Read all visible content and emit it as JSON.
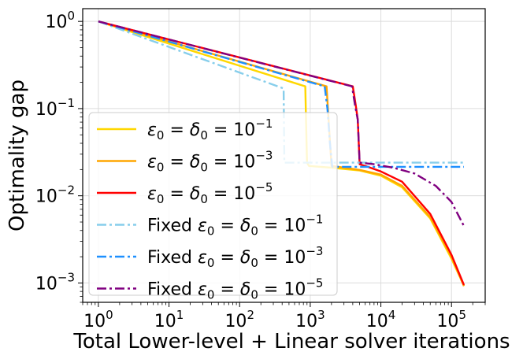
{
  "chart_data": {
    "type": "line",
    "xlabel": "Total Lower-level + Linear solver iterations",
    "ylabel": "Optimality gap",
    "xscale": "log",
    "yscale": "log",
    "xlim": [
      0.6,
      300000
    ],
    "ylim": [
      0.0006,
      1.4
    ],
    "grid": true,
    "legend_position": "lower-left",
    "x_ticks": [
      {
        "value": 1,
        "base": "10",
        "exp": "0"
      },
      {
        "value": 10,
        "base": "10",
        "exp": "1"
      },
      {
        "value": 100,
        "base": "10",
        "exp": "2"
      },
      {
        "value": 1000,
        "base": "10",
        "exp": "3"
      },
      {
        "value": 10000,
        "base": "10",
        "exp": "4"
      },
      {
        "value": 100000,
        "base": "10",
        "exp": "5"
      }
    ],
    "y_ticks": [
      {
        "value": 0.001,
        "base": "10",
        "exp": "−3"
      },
      {
        "value": 0.01,
        "base": "10",
        "exp": "−2"
      },
      {
        "value": 0.1,
        "base": "10",
        "exp": "−1"
      },
      {
        "value": 1,
        "base": "10",
        "exp": "0"
      }
    ],
    "series": [
      {
        "name_prefix": "",
        "exp": "−1",
        "color": "#FFD700",
        "dash": "solid",
        "points": [
          [
            1,
            1
          ],
          [
            850,
            0.18
          ],
          [
            870,
            0.075
          ],
          [
            900,
            0.024
          ],
          [
            960,
            0.022
          ],
          [
            2000,
            0.021
          ],
          [
            5000,
            0.0195
          ],
          [
            10000,
            0.017
          ],
          [
            20000,
            0.0125
          ],
          [
            50000,
            0.0055
          ],
          [
            100000,
            0.0019
          ],
          [
            150000,
            0.00093
          ]
        ]
      },
      {
        "name_prefix": "",
        "exp": "−3",
        "color": "#FFA500",
        "dash": "solid",
        "points": [
          [
            1,
            1
          ],
          [
            1700,
            0.18
          ],
          [
            1850,
            0.06
          ],
          [
            2000,
            0.022
          ],
          [
            3000,
            0.021
          ],
          [
            5000,
            0.0198
          ],
          [
            10000,
            0.0175
          ],
          [
            20000,
            0.013
          ],
          [
            50000,
            0.0057
          ],
          [
            100000,
            0.002
          ],
          [
            150000,
            0.00092
          ]
        ]
      },
      {
        "name_prefix": "",
        "exp": "−5",
        "color": "#FF0000",
        "dash": "solid",
        "points": [
          [
            1,
            1
          ],
          [
            4000,
            0.18
          ],
          [
            4400,
            0.11
          ],
          [
            4700,
            0.075
          ],
          [
            5000,
            0.023
          ],
          [
            6000,
            0.022
          ],
          [
            10000,
            0.019
          ],
          [
            20000,
            0.0145
          ],
          [
            50000,
            0.0062
          ],
          [
            100000,
            0.0021
          ],
          [
            150000,
            0.00095
          ]
        ]
      },
      {
        "name_prefix": "Fixed ",
        "exp": "−1",
        "color": "#87CEEB",
        "dash": "dashdot",
        "points": [
          [
            1,
            1
          ],
          [
            420,
            0.17
          ],
          [
            430,
            0.024
          ],
          [
            150000,
            0.024
          ]
        ]
      },
      {
        "name_prefix": "Fixed ",
        "exp": "−3",
        "color": "#1E90FF",
        "dash": "dashdot",
        "points": [
          [
            1,
            1
          ],
          [
            1600,
            0.18
          ],
          [
            1750,
            0.1
          ],
          [
            1900,
            0.04
          ],
          [
            2050,
            0.0215
          ],
          [
            150000,
            0.0215
          ]
        ]
      },
      {
        "name_prefix": "Fixed ",
        "exp": "−5",
        "color": "#800080",
        "dash": "dashdot",
        "points": [
          [
            1,
            1
          ],
          [
            3900,
            0.18
          ],
          [
            4300,
            0.11
          ],
          [
            4700,
            0.075
          ],
          [
            5000,
            0.024
          ],
          [
            8000,
            0.023
          ],
          [
            15000,
            0.021
          ],
          [
            30000,
            0.018
          ],
          [
            60000,
            0.013
          ],
          [
            100000,
            0.0085
          ],
          [
            150000,
            0.0045
          ]
        ]
      }
    ]
  }
}
